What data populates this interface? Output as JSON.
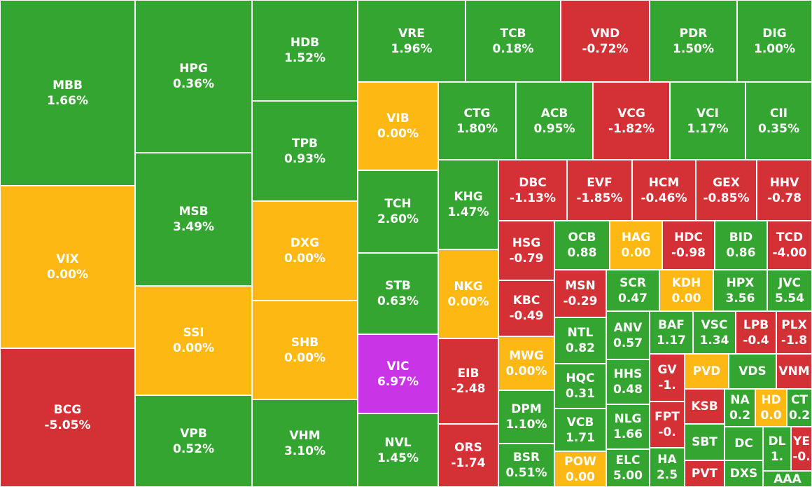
{
  "colors": {
    "up": "#35a532",
    "flat": "#fdb813",
    "down": "#d33136",
    "ceiling": "#c934e6"
  },
  "chart_data": {
    "type": "treemap",
    "tiles": [
      {
        "symbol": "MBB",
        "change": "1.66%",
        "status": "up"
      },
      {
        "symbol": "VIX",
        "change": "0.00%",
        "status": "flat"
      },
      {
        "symbol": "BCG",
        "change": "-5.05%",
        "status": "down"
      },
      {
        "symbol": "HPG",
        "change": "0.36%",
        "status": "up"
      },
      {
        "symbol": "MSB",
        "change": "3.49%",
        "status": "up"
      },
      {
        "symbol": "SSI",
        "change": "0.00%",
        "status": "flat"
      },
      {
        "symbol": "VPB",
        "change": "0.52%",
        "status": "up"
      },
      {
        "symbol": "HDB",
        "change": "1.52%",
        "status": "up"
      },
      {
        "symbol": "TPB",
        "change": "0.93%",
        "status": "up"
      },
      {
        "symbol": "DXG",
        "change": "0.00%",
        "status": "flat"
      },
      {
        "symbol": "SHB",
        "change": "0.00%",
        "status": "flat"
      },
      {
        "symbol": "VHM",
        "change": "3.10%",
        "status": "up"
      },
      {
        "symbol": "VRE",
        "change": "1.96%",
        "status": "up"
      },
      {
        "symbol": "TCB",
        "change": "0.18%",
        "status": "up"
      },
      {
        "symbol": "VND",
        "change": "-0.72%",
        "status": "down"
      },
      {
        "symbol": "PDR",
        "change": "1.50%",
        "status": "up"
      },
      {
        "symbol": "DIG",
        "change": "1.00%",
        "status": "up"
      },
      {
        "symbol": "VIB",
        "change": "0.00%",
        "status": "flat"
      },
      {
        "symbol": "CTG",
        "change": "1.80%",
        "status": "up"
      },
      {
        "symbol": "ACB",
        "change": "0.95%",
        "status": "up"
      },
      {
        "symbol": "VCG",
        "change": "-1.82%",
        "status": "down"
      },
      {
        "symbol": "VCI",
        "change": "1.17%",
        "status": "up"
      },
      {
        "symbol": "CII",
        "change": "0.35%",
        "status": "up"
      },
      {
        "symbol": "TCH",
        "change": "2.60%",
        "status": "up"
      },
      {
        "symbol": "KHG",
        "change": "1.47%",
        "status": "up"
      },
      {
        "symbol": "STB",
        "change": "0.63%",
        "status": "up"
      },
      {
        "symbol": "NKG",
        "change": "0.00%",
        "status": "flat"
      },
      {
        "symbol": "VIC",
        "change": "6.97%",
        "status": "ceiling"
      },
      {
        "symbol": "EIB",
        "change": "-2.48",
        "status": "down"
      },
      {
        "symbol": "NVL",
        "change": "1.45%",
        "status": "up"
      },
      {
        "symbol": "ORS",
        "change": "-1.74",
        "status": "down"
      },
      {
        "symbol": "DBC",
        "change": "-1.13%",
        "status": "down"
      },
      {
        "symbol": "EVF",
        "change": "-1.85%",
        "status": "down"
      },
      {
        "symbol": "HCM",
        "change": "-0.46%",
        "status": "down"
      },
      {
        "symbol": "GEX",
        "change": "-0.85%",
        "status": "down"
      },
      {
        "symbol": "HHV",
        "change": "-0.78",
        "status": "down"
      },
      {
        "symbol": "HSG",
        "change": "-0.79",
        "status": "down"
      },
      {
        "symbol": "KBC",
        "change": "-0.49",
        "status": "down"
      },
      {
        "symbol": "MWG",
        "change": "0.00%",
        "status": "flat"
      },
      {
        "symbol": "DPM",
        "change": "1.10%",
        "status": "up"
      },
      {
        "symbol": "BSR",
        "change": "0.51%",
        "status": "up"
      },
      {
        "symbol": "OCB",
        "change": "0.88",
        "status": "up"
      },
      {
        "symbol": "HAG",
        "change": "0.00",
        "status": "flat"
      },
      {
        "symbol": "HDC",
        "change": "-0.98",
        "status": "down"
      },
      {
        "symbol": "BID",
        "change": "0.86",
        "status": "up"
      },
      {
        "symbol": "TCD",
        "change": "-4.00",
        "status": "down"
      },
      {
        "symbol": "MSN",
        "change": "-0.29",
        "status": "down"
      },
      {
        "symbol": "SCR",
        "change": "0.47",
        "status": "up"
      },
      {
        "symbol": "KDH",
        "change": "0.00",
        "status": "flat"
      },
      {
        "symbol": "HPX",
        "change": "3.56",
        "status": "up"
      },
      {
        "symbol": "JVC",
        "change": "5.54",
        "status": "up"
      },
      {
        "symbol": "NTL",
        "change": "0.82",
        "status": "up"
      },
      {
        "symbol": "ANV",
        "change": "0.57",
        "status": "up"
      },
      {
        "symbol": "BAF",
        "change": "1.17",
        "status": "up"
      },
      {
        "symbol": "VSC",
        "change": "1.34",
        "status": "up"
      },
      {
        "symbol": "LPB",
        "change": "-0.4",
        "status": "down"
      },
      {
        "symbol": "PLX",
        "change": "-1.8",
        "status": "down"
      },
      {
        "symbol": "HQC",
        "change": "0.31",
        "status": "up"
      },
      {
        "symbol": "HHS",
        "change": "0.48",
        "status": "up"
      },
      {
        "symbol": "GV",
        "change": "-1.",
        "status": "down"
      },
      {
        "symbol": "PVD",
        "change": "",
        "status": "flat"
      },
      {
        "symbol": "VDS",
        "change": "",
        "status": "up"
      },
      {
        "symbol": "VNM",
        "change": "",
        "status": "down"
      },
      {
        "symbol": "VCB",
        "change": "1.71",
        "status": "up"
      },
      {
        "symbol": "NLG",
        "change": "1.66",
        "status": "up"
      },
      {
        "symbol": "FPT",
        "change": "-0.",
        "status": "down"
      },
      {
        "symbol": "KSB",
        "change": "",
        "status": "down"
      },
      {
        "symbol": "NA",
        "change": "0.2",
        "status": "up"
      },
      {
        "symbol": "HD",
        "change": "0.0",
        "status": "flat"
      },
      {
        "symbol": "CT",
        "change": "0.2",
        "status": "up"
      },
      {
        "symbol": "SBT",
        "change": "",
        "status": "up"
      },
      {
        "symbol": "DC",
        "change": "",
        "status": "up"
      },
      {
        "symbol": "DL",
        "change": "1.",
        "status": "up"
      },
      {
        "symbol": "YE",
        "change": "-0.",
        "status": "down"
      },
      {
        "symbol": "POW",
        "change": "0.00",
        "status": "flat"
      },
      {
        "symbol": "ELC",
        "change": "5.00",
        "status": "up"
      },
      {
        "symbol": "HA",
        "change": "2.5",
        "status": "up"
      },
      {
        "symbol": "PVT",
        "change": "",
        "status": "down"
      },
      {
        "symbol": "DXS",
        "change": "",
        "status": "up"
      },
      {
        "symbol": "AAA",
        "change": "",
        "status": "up"
      }
    ]
  }
}
